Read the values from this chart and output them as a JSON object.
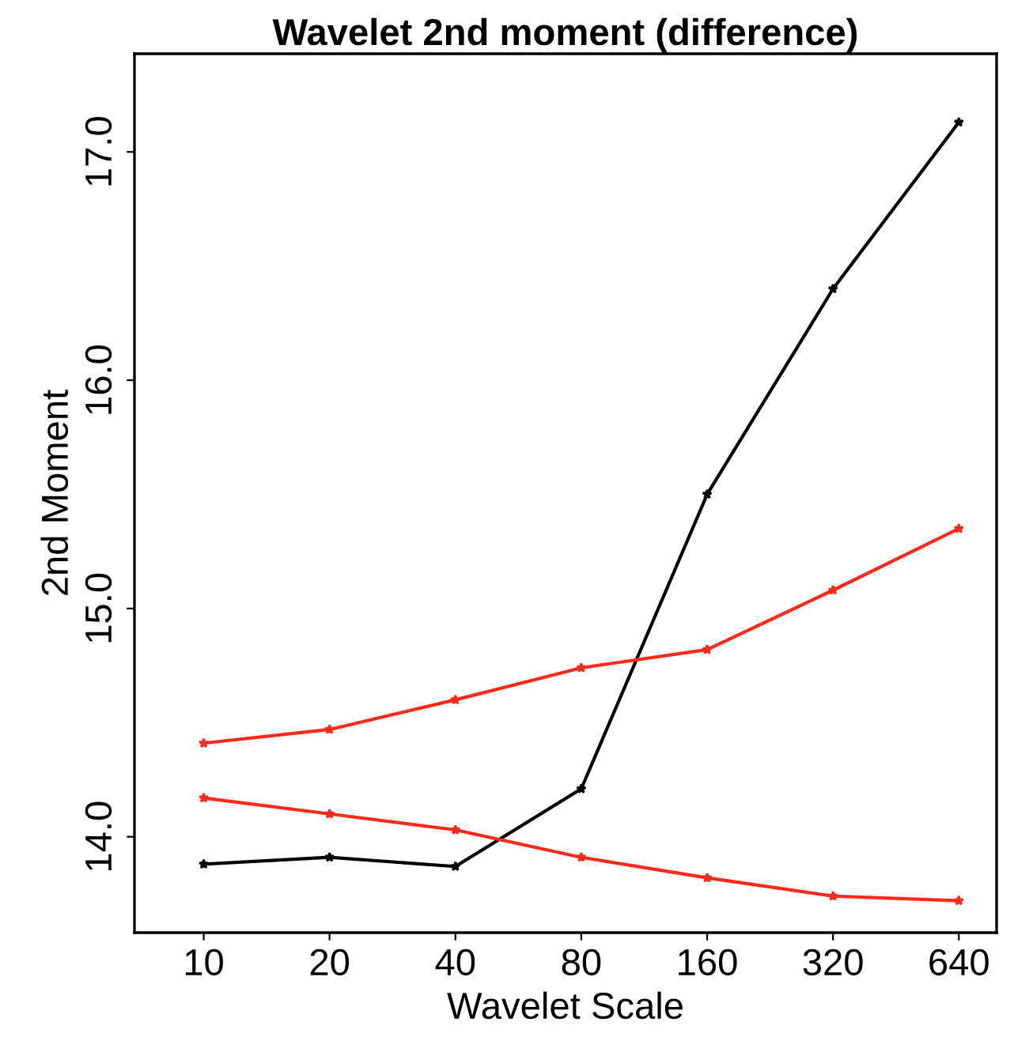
{
  "chart_data": {
    "type": "line",
    "title": "Wavelet 2nd moment (difference)",
    "xlabel": "Wavelet Scale",
    "ylabel": "2nd Moment",
    "categories": [
      "10",
      "20",
      "40",
      "80",
      "160",
      "320",
      "640"
    ],
    "series": [
      {
        "color": "#000000",
        "values": [
          13.88,
          13.91,
          13.87,
          14.21,
          15.5,
          16.4,
          17.13
        ]
      },
      {
        "color": "#ff2a1a",
        "values": [
          14.41,
          14.47,
          14.6,
          14.74,
          14.82,
          15.08,
          15.35
        ]
      },
      {
        "color": "#ff2a1a",
        "values": [
          14.17,
          14.1,
          14.03,
          13.91,
          13.82,
          13.74,
          13.72
        ]
      }
    ],
    "ylim": [
      13.58,
      17.43
    ],
    "yticks": [
      {
        "value": 14,
        "label": "14.0"
      },
      {
        "value": 15,
        "label": "15.0"
      },
      {
        "value": 16,
        "label": "16.0"
      },
      {
        "value": 17,
        "label": "17.0"
      }
    ],
    "grid": false,
    "legend": false,
    "marker": "star",
    "line_style": "solid"
  }
}
